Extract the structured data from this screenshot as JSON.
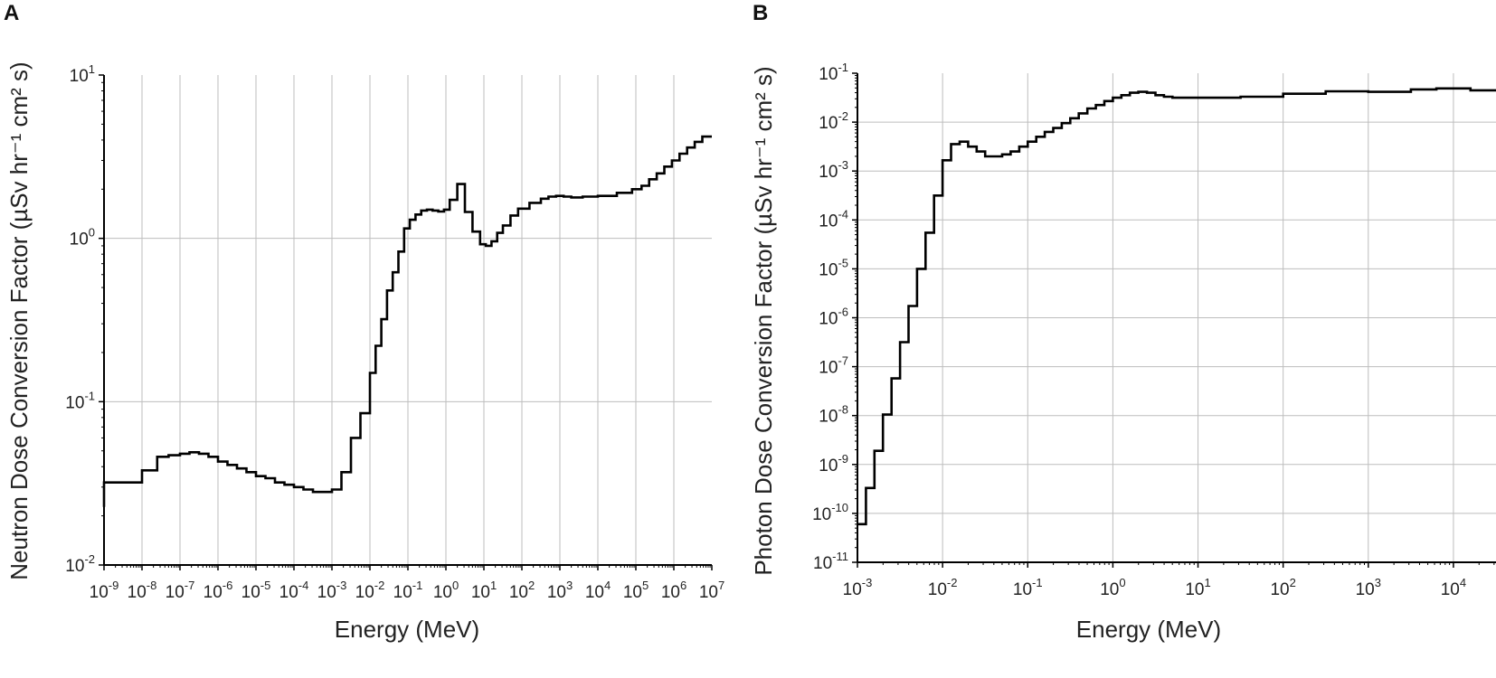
{
  "chart_data": [
    {
      "panel_label": "A",
      "type": "line",
      "step": true,
      "log_x": true,
      "log_y": true,
      "xlabel": "Energy (MeV)",
      "ylabel": "Neutron Dose Conversion Factor (µSv hr⁻¹ cm² s)",
      "xlim_exp": [
        -9,
        7
      ],
      "ylim_exp": [
        -2,
        1
      ],
      "x_ticks": [
        {
          "base": "10",
          "exp": "-9"
        },
        {
          "base": "10",
          "exp": "-8"
        },
        {
          "base": "10",
          "exp": "-7"
        },
        {
          "base": "10",
          "exp": "-6"
        },
        {
          "base": "10",
          "exp": "-5"
        },
        {
          "base": "10",
          "exp": "-4"
        },
        {
          "base": "10",
          "exp": "-3"
        },
        {
          "base": "10",
          "exp": "-2"
        },
        {
          "base": "10",
          "exp": "-1"
        },
        {
          "base": "10",
          "exp": "0"
        },
        {
          "base": "10",
          "exp": "1"
        },
        {
          "base": "10",
          "exp": "2"
        },
        {
          "base": "10",
          "exp": "3"
        },
        {
          "base": "10",
          "exp": "4"
        },
        {
          "base": "10",
          "exp": "5"
        },
        {
          "base": "10",
          "exp": "6"
        },
        {
          "base": "10",
          "exp": "7"
        }
      ],
      "y_ticks": [
        {
          "base": "10",
          "exp": "-2"
        },
        {
          "base": "10",
          "exp": "-1"
        },
        {
          "base": "10",
          "exp": "0"
        },
        {
          "base": "10",
          "exp": "1"
        }
      ],
      "grid": "major",
      "series": [
        {
          "x_exp": [
            -9,
            -8,
            -7.6,
            -7.3,
            -7,
            -6.75,
            -6.5,
            -6.25,
            -6,
            -5.75,
            -5.5,
            -5.25,
            -5,
            -4.75,
            -4.5,
            -4.25,
            -4,
            -3.75,
            -3.5,
            -3.25,
            -3,
            -2.75,
            -2.5,
            -2.25,
            -2,
            -1.85,
            -1.7,
            -1.55,
            -1.4,
            -1.25,
            -1.1,
            -0.95,
            -0.8,
            -0.65,
            -0.5,
            -0.35,
            -0.2,
            -0.05,
            0.1,
            0.3,
            0.5,
            0.7,
            0.9,
            1.05,
            1.2,
            1.35,
            1.5,
            1.7,
            1.9,
            2.2,
            2.5,
            2.7,
            2.9,
            3.1,
            3.3,
            3.6,
            4,
            4.5,
            4.9,
            5.15,
            5.35,
            5.55,
            5.75,
            5.95,
            6.15,
            6.35,
            6.55,
            6.75,
            6.9,
            7
          ],
          "y": [
            0.032,
            0.038,
            0.046,
            0.047,
            0.048,
            0.049,
            0.048,
            0.046,
            0.043,
            0.041,
            0.039,
            0.037,
            0.035,
            0.034,
            0.032,
            0.031,
            0.03,
            0.029,
            0.028,
            0.028,
            0.029,
            0.037,
            0.06,
            0.085,
            0.15,
            0.22,
            0.32,
            0.48,
            0.62,
            0.83,
            1.15,
            1.3,
            1.4,
            1.48,
            1.5,
            1.48,
            1.46,
            1.5,
            1.72,
            2.15,
            1.45,
            1.1,
            0.92,
            0.9,
            0.96,
            1.08,
            1.2,
            1.38,
            1.52,
            1.65,
            1.75,
            1.8,
            1.82,
            1.8,
            1.78,
            1.8,
            1.82,
            1.9,
            2.0,
            2.1,
            2.3,
            2.5,
            2.75,
            3.0,
            3.3,
            3.6,
            3.9,
            4.2,
            4.2,
            4.2
          ]
        }
      ]
    },
    {
      "panel_label": "B",
      "type": "line",
      "step": true,
      "log_x": true,
      "log_y": true,
      "xlabel": "Energy (MeV)",
      "ylabel": "Photon Dose Conversion Factor (µSv hr⁻¹ cm² s)",
      "xlim_exp": [
        -3,
        4.5
      ],
      "ylim_exp": [
        -11,
        -1
      ],
      "x_ticks": [
        {
          "base": "10",
          "exp": "-3"
        },
        {
          "base": "10",
          "exp": "-2"
        },
        {
          "base": "10",
          "exp": "-1"
        },
        {
          "base": "10",
          "exp": "0"
        },
        {
          "base": "10",
          "exp": "1"
        },
        {
          "base": "10",
          "exp": "2"
        },
        {
          "base": "10",
          "exp": "3"
        },
        {
          "base": "10",
          "exp": "4"
        }
      ],
      "y_ticks": [
        {
          "base": "10",
          "exp": "-11"
        },
        {
          "base": "10",
          "exp": "-10"
        },
        {
          "base": "10",
          "exp": "-9"
        },
        {
          "base": "10",
          "exp": "-8"
        },
        {
          "base": "10",
          "exp": "-7"
        },
        {
          "base": "10",
          "exp": "-6"
        },
        {
          "base": "10",
          "exp": "-5"
        },
        {
          "base": "10",
          "exp": "-4"
        },
        {
          "base": "10",
          "exp": "-3"
        },
        {
          "base": "10",
          "exp": "-2"
        },
        {
          "base": "10",
          "exp": "-1"
        }
      ],
      "grid": "major",
      "series": [
        {
          "x_exp": [
            -3,
            -2.9,
            -2.8,
            -2.7,
            -2.6,
            -2.5,
            -2.4,
            -2.3,
            -2.2,
            -2.1,
            -2,
            -1.9,
            -1.8,
            -1.7,
            -1.6,
            -1.5,
            -1.4,
            -1.3,
            -1.2,
            -1.1,
            -1,
            -0.9,
            -0.8,
            -0.7,
            -0.6,
            -0.5,
            -0.4,
            -0.3,
            -0.2,
            -0.1,
            0,
            0.1,
            0.2,
            0.3,
            0.4,
            0.5,
            0.6,
            0.7,
            1,
            1.5,
            2,
            2.5,
            3,
            3.5,
            3.8,
            4.2,
            4.5
          ],
          "y_exp": [
            -10.22,
            -9.48,
            -8.72,
            -7.98,
            -7.24,
            -6.5,
            -5.76,
            -5.0,
            -4.26,
            -3.5,
            -2.78,
            -2.45,
            -2.4,
            -2.5,
            -2.6,
            -2.7,
            -2.7,
            -2.66,
            -2.6,
            -2.5,
            -2.4,
            -2.3,
            -2.2,
            -2.12,
            -2.02,
            -1.92,
            -1.82,
            -1.72,
            -1.65,
            -1.57,
            -1.5,
            -1.45,
            -1.4,
            -1.38,
            -1.4,
            -1.45,
            -1.48,
            -1.5,
            -1.5,
            -1.48,
            -1.42,
            -1.37,
            -1.38,
            -1.33,
            -1.31,
            -1.35,
            -1.35
          ]
        }
      ]
    }
  ]
}
